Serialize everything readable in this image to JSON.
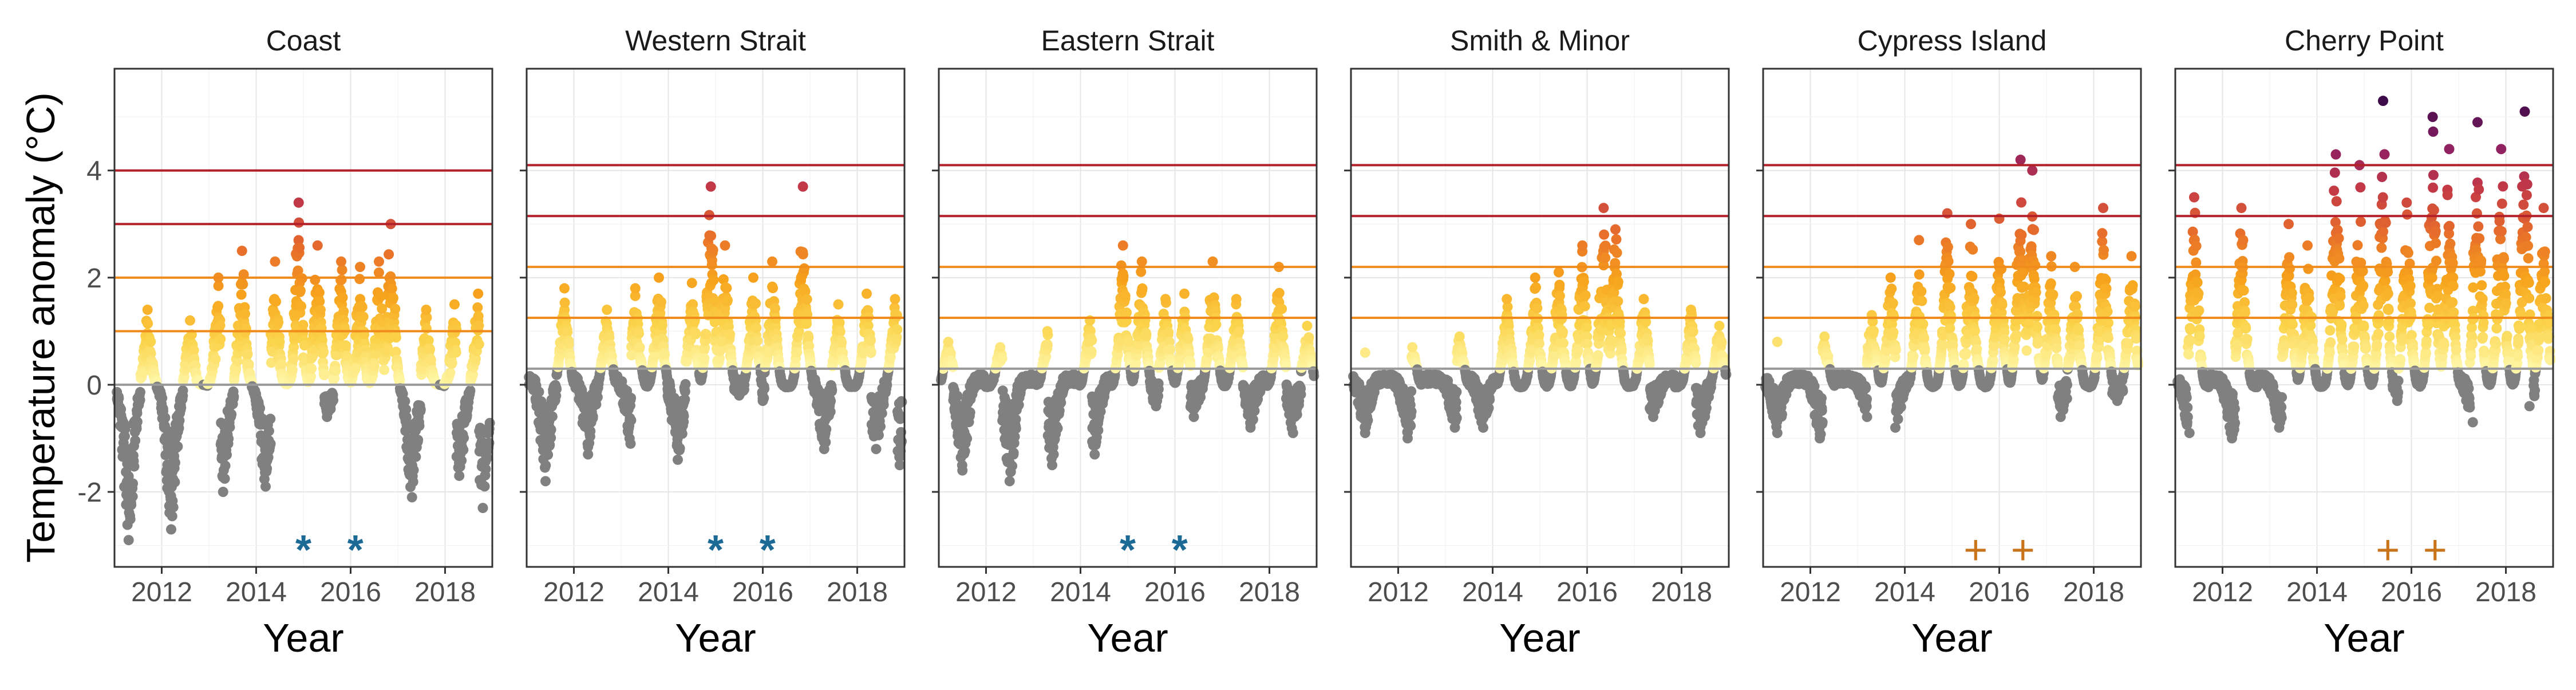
{
  "chart_data": {
    "type": "scatter",
    "ylabel": "Temperature anomaly (°C)",
    "xlabel": "Year",
    "xlim": [
      2011.0,
      2019.0
    ],
    "ylim": [
      -3.4,
      5.9
    ],
    "x_ticks": [
      2012,
      2014,
      2016,
      2018
    ],
    "x_tick_labels": [
      "2012",
      "2014",
      "2016",
      "2018"
    ],
    "y_ticks": [
      -2,
      0,
      2,
      4
    ],
    "y_tick_labels": [
      "-2",
      "0",
      "2",
      "4"
    ],
    "grid": true,
    "colors": {
      "below_zero": "#808080",
      "gradient": [
        "#fff7a8",
        "#fbd34a",
        "#f7a31c",
        "#e8702a",
        "#c53a45",
        "#8d1f63",
        "#3d0b4a"
      ],
      "threshold_orange": "#f08c1c",
      "threshold_red": "#b3202a",
      "star": "#1b6a96",
      "plus": "#c9731b"
    },
    "panels": [
      {
        "title": "Coast",
        "baseline": 0.0,
        "thresholds": [
          1.0,
          2.0,
          3.0,
          4.0
        ],
        "markers": {
          "symbol": "*",
          "x": [
            2015.0,
            2016.1
          ]
        },
        "peaks": [
          {
            "x": 2011.7,
            "y": 1.4
          },
          {
            "x": 2012.6,
            "y": 1.2
          },
          {
            "x": 2013.2,
            "y": 2.0
          },
          {
            "x": 2013.7,
            "y": 2.5
          },
          {
            "x": 2014.4,
            "y": 2.3
          },
          {
            "x": 2014.9,
            "y": 3.4
          },
          {
            "x": 2015.3,
            "y": 2.6
          },
          {
            "x": 2015.8,
            "y": 2.3
          },
          {
            "x": 2016.2,
            "y": 2.2
          },
          {
            "x": 2016.6,
            "y": 2.3
          },
          {
            "x": 2016.85,
            "y": 3.0
          },
          {
            "x": 2017.6,
            "y": 1.4
          },
          {
            "x": 2018.2,
            "y": 1.5
          },
          {
            "x": 2018.7,
            "y": 1.7
          }
        ],
        "troughs": [
          {
            "x": 2011.3,
            "y": -2.9
          },
          {
            "x": 2012.2,
            "y": -2.7
          },
          {
            "x": 2013.3,
            "y": -2.0
          },
          {
            "x": 2014.2,
            "y": -1.9
          },
          {
            "x": 2015.5,
            "y": -0.6
          },
          {
            "x": 2017.3,
            "y": -2.1
          },
          {
            "x": 2018.3,
            "y": -1.7
          },
          {
            "x": 2018.8,
            "y": -2.3
          }
        ]
      },
      {
        "title": "Western Strait",
        "baseline": 0.3,
        "thresholds": [
          1.25,
          2.2,
          3.15,
          4.1
        ],
        "markers": {
          "symbol": "*",
          "x": [
            2015.0,
            2016.1
          ]
        },
        "peaks": [
          {
            "x": 2011.8,
            "y": 1.8
          },
          {
            "x": 2012.7,
            "y": 1.4
          },
          {
            "x": 2013.3,
            "y": 1.8
          },
          {
            "x": 2013.8,
            "y": 2.0
          },
          {
            "x": 2014.5,
            "y": 1.9
          },
          {
            "x": 2014.9,
            "y": 3.7
          },
          {
            "x": 2015.2,
            "y": 2.6
          },
          {
            "x": 2015.8,
            "y": 2.0
          },
          {
            "x": 2016.2,
            "y": 2.3
          },
          {
            "x": 2016.85,
            "y": 3.7
          },
          {
            "x": 2017.6,
            "y": 1.5
          },
          {
            "x": 2018.2,
            "y": 1.7
          },
          {
            "x": 2018.8,
            "y": 1.6
          }
        ],
        "troughs": [
          {
            "x": 2011.4,
            "y": -1.8
          },
          {
            "x": 2012.3,
            "y": -1.3
          },
          {
            "x": 2013.2,
            "y": -1.1
          },
          {
            "x": 2014.2,
            "y": -1.4
          },
          {
            "x": 2015.5,
            "y": -0.2
          },
          {
            "x": 2016.0,
            "y": -0.3
          },
          {
            "x": 2017.3,
            "y": -1.2
          },
          {
            "x": 2018.4,
            "y": -1.2
          },
          {
            "x": 2018.9,
            "y": -1.5
          }
        ]
      },
      {
        "title": "Eastern Strait",
        "baseline": 0.3,
        "thresholds": [
          1.25,
          2.2,
          3.15,
          4.1
        ],
        "markers": {
          "symbol": "*",
          "x": [
            2015.0,
            2016.1
          ]
        },
        "peaks": [
          {
            "x": 2011.2,
            "y": 0.8
          },
          {
            "x": 2012.3,
            "y": 0.7
          },
          {
            "x": 2013.3,
            "y": 1.0
          },
          {
            "x": 2014.2,
            "y": 1.2
          },
          {
            "x": 2014.9,
            "y": 2.6
          },
          {
            "x": 2015.3,
            "y": 2.3
          },
          {
            "x": 2015.8,
            "y": 1.6
          },
          {
            "x": 2016.2,
            "y": 1.7
          },
          {
            "x": 2016.8,
            "y": 2.3
          },
          {
            "x": 2017.3,
            "y": 1.6
          },
          {
            "x": 2018.2,
            "y": 2.2
          },
          {
            "x": 2018.8,
            "y": 1.1
          }
        ],
        "troughs": [
          {
            "x": 2011.5,
            "y": -1.6
          },
          {
            "x": 2012.5,
            "y": -1.8
          },
          {
            "x": 2013.4,
            "y": -1.5
          },
          {
            "x": 2014.3,
            "y": -1.3
          },
          {
            "x": 2015.6,
            "y": -0.4
          },
          {
            "x": 2016.4,
            "y": -0.6
          },
          {
            "x": 2017.6,
            "y": -0.8
          },
          {
            "x": 2018.5,
            "y": -0.9
          }
        ]
      },
      {
        "title": "Smith & Minor",
        "baseline": 0.3,
        "thresholds": [
          1.25,
          2.2,
          3.15,
          4.1
        ],
        "markers": {
          "symbol": "",
          "x": []
        },
        "peaks": [
          {
            "x": 2011.3,
            "y": 0.6
          },
          {
            "x": 2012.3,
            "y": 0.7
          },
          {
            "x": 2013.3,
            "y": 0.9
          },
          {
            "x": 2014.3,
            "y": 1.6
          },
          {
            "x": 2014.9,
            "y": 2.0
          },
          {
            "x": 2015.4,
            "y": 2.1
          },
          {
            "x": 2015.9,
            "y": 2.6
          },
          {
            "x": 2016.35,
            "y": 3.3
          },
          {
            "x": 2016.6,
            "y": 2.9
          },
          {
            "x": 2017.2,
            "y": 1.6
          },
          {
            "x": 2018.2,
            "y": 1.4
          },
          {
            "x": 2018.8,
            "y": 1.1
          }
        ],
        "troughs": [
          {
            "x": 2011.3,
            "y": -0.9
          },
          {
            "x": 2012.2,
            "y": -1.0
          },
          {
            "x": 2013.2,
            "y": -0.8
          },
          {
            "x": 2013.8,
            "y": -0.8
          },
          {
            "x": 2017.4,
            "y": -0.6
          },
          {
            "x": 2018.4,
            "y": -0.9
          }
        ]
      },
      {
        "title": "Cypress Island",
        "baseline": 0.3,
        "thresholds": [
          1.25,
          2.2,
          3.15,
          4.1
        ],
        "markers": {
          "symbol": "+",
          "x": [
            2015.5,
            2016.5
          ]
        },
        "peaks": [
          {
            "x": 2011.3,
            "y": 0.8
          },
          {
            "x": 2012.3,
            "y": 0.9
          },
          {
            "x": 2013.3,
            "y": 1.3
          },
          {
            "x": 2013.7,
            "y": 2.0
          },
          {
            "x": 2014.3,
            "y": 2.7
          },
          {
            "x": 2014.9,
            "y": 3.2
          },
          {
            "x": 2015.4,
            "y": 3.0
          },
          {
            "x": 2016.0,
            "y": 3.1
          },
          {
            "x": 2016.45,
            "y": 4.2
          },
          {
            "x": 2016.7,
            "y": 4.0
          },
          {
            "x": 2017.1,
            "y": 2.4
          },
          {
            "x": 2017.6,
            "y": 2.2
          },
          {
            "x": 2018.2,
            "y": 3.3
          },
          {
            "x": 2018.8,
            "y": 2.4
          }
        ],
        "troughs": [
          {
            "x": 2011.3,
            "y": -0.9
          },
          {
            "x": 2012.2,
            "y": -1.0
          },
          {
            "x": 2013.2,
            "y": -0.6
          },
          {
            "x": 2013.8,
            "y": -0.8
          },
          {
            "x": 2017.3,
            "y": -0.6
          },
          {
            "x": 2018.5,
            "y": -0.3
          }
        ]
      },
      {
        "title": "Cherry Point",
        "baseline": 0.3,
        "thresholds": [
          1.25,
          2.2,
          3.15,
          4.1
        ],
        "markers": {
          "symbol": "+",
          "x": [
            2015.5,
            2016.5
          ]
        },
        "peaks": [
          {
            "x": 2011.4,
            "y": 3.5
          },
          {
            "x": 2012.4,
            "y": 3.3
          },
          {
            "x": 2013.4,
            "y": 3.0
          },
          {
            "x": 2013.8,
            "y": 2.6
          },
          {
            "x": 2014.4,
            "y": 4.3
          },
          {
            "x": 2014.9,
            "y": 4.1
          },
          {
            "x": 2015.4,
            "y": 5.3
          },
          {
            "x": 2015.9,
            "y": 3.4
          },
          {
            "x": 2016.45,
            "y": 5.0
          },
          {
            "x": 2016.8,
            "y": 4.4
          },
          {
            "x": 2017.4,
            "y": 4.9
          },
          {
            "x": 2017.9,
            "y": 4.4
          },
          {
            "x": 2018.4,
            "y": 5.1
          },
          {
            "x": 2018.8,
            "y": 3.3
          }
        ],
        "troughs": [
          {
            "x": 2011.3,
            "y": -0.9
          },
          {
            "x": 2012.2,
            "y": -1.0
          },
          {
            "x": 2013.2,
            "y": -0.8
          },
          {
            "x": 2015.7,
            "y": -0.3
          },
          {
            "x": 2017.3,
            "y": -0.7
          },
          {
            "x": 2018.5,
            "y": -0.4
          }
        ]
      }
    ]
  }
}
